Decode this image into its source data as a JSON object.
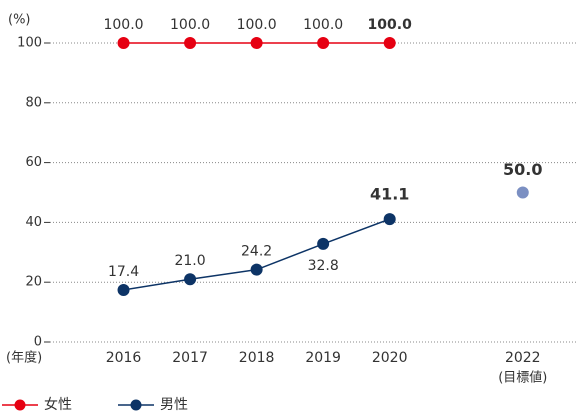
{
  "chart_data": {
    "type": "line",
    "unit_label": "(%)",
    "x_label": "(年度)",
    "x": [
      2016,
      2017,
      2018,
      2019,
      2020
    ],
    "xticks": [
      2016,
      2017,
      2018,
      2019,
      2020,
      2022
    ],
    "xlim": [
      2015,
      2022.8
    ],
    "ylim": [
      0,
      100
    ],
    "yticks": [
      0,
      20,
      40,
      60,
      80,
      100
    ],
    "grid": true,
    "series": [
      {
        "name": "女性",
        "color": "#e60012",
        "values": [
          100,
          100,
          100,
          100,
          100
        ],
        "value_labels": [
          "100.0",
          "100.0",
          "100.0",
          "100.0",
          "100.0"
        ]
      },
      {
        "name": "男性",
        "color": "#0d3466",
        "values": [
          17.4,
          21,
          24.2,
          32.8,
          41.1
        ],
        "value_labels": [
          "17.4",
          "21.0",
          "24.2",
          "32.8",
          "41.1"
        ]
      }
    ],
    "target": {
      "x": 2022,
      "value": 50,
      "value_label": "50.0",
      "label": "(目標値)",
      "color": "#7b8fc2"
    }
  }
}
